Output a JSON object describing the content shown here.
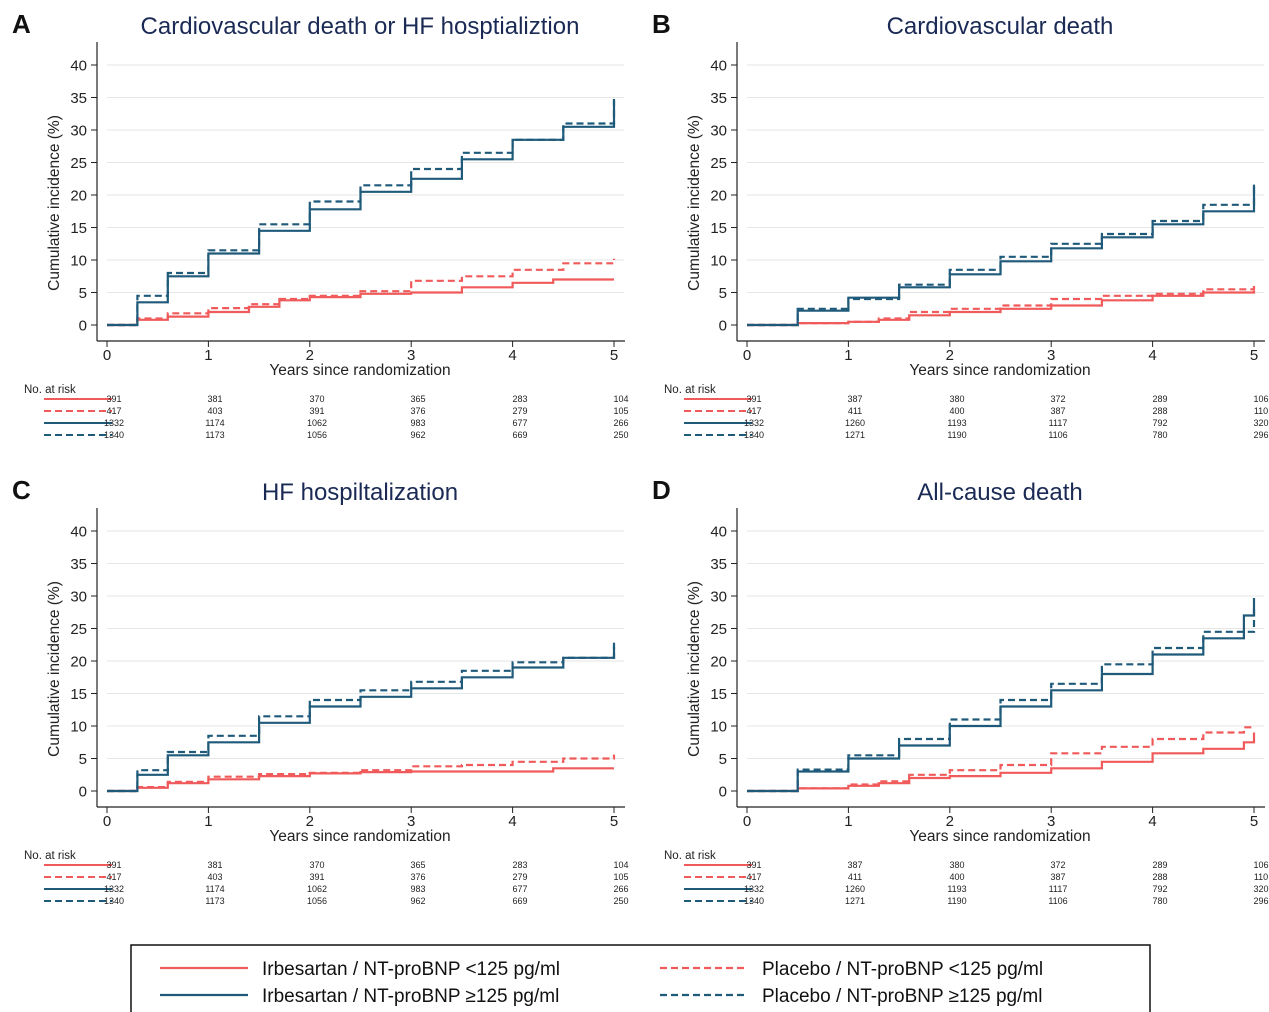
{
  "colors": {
    "irbesartan_low": "#f05a5a",
    "irbesartan_high": "#1f5a7a",
    "title": "#1a2a55",
    "axis": "#222222",
    "grid": "#e6e6e6"
  },
  "legend": {
    "items": [
      {
        "label": "Irbesartan / NT-proBNP <125 pg/ml",
        "series": 0
      },
      {
        "label": "Placebo / NT-proBNP <125 pg/ml",
        "series": 1
      },
      {
        "label": "Irbesartan / NT-proBNP ≥125 pg/ml",
        "series": 2
      },
      {
        "label": "Placebo / NT-proBNP ≥125 pg/ml",
        "series": 3
      }
    ]
  },
  "chart_data": [
    {
      "type": "line",
      "panel_letter": "A",
      "title": "Cardiovascular death or HF hosptializtion",
      "xlabel": "Years since randomization",
      "ylabel": "Cumulative incidence (%)",
      "xlim": [
        0,
        5
      ],
      "ylim": [
        0,
        40
      ],
      "xticks": [
        0,
        1,
        2,
        3,
        4,
        5
      ],
      "yticks": [
        0,
        5,
        10,
        15,
        20,
        25,
        30,
        35,
        40
      ],
      "grid": true,
      "series": [
        {
          "style": "solid",
          "color": "#f05a5a",
          "x": [
            0,
            0.3,
            0.6,
            1.0,
            1.4,
            1.7,
            2.0,
            2.5,
            3.0,
            3.5,
            4.0,
            4.4,
            5.0
          ],
          "y": [
            0,
            0.8,
            1.3,
            2.0,
            2.8,
            3.8,
            4.3,
            4.8,
            5.0,
            5.8,
            6.5,
            7.0,
            7.0
          ]
        },
        {
          "style": "dashed",
          "color": "#f05a5a",
          "x": [
            0,
            0.3,
            0.6,
            1.0,
            1.4,
            1.7,
            2.0,
            2.5,
            3.0,
            3.5,
            4.0,
            4.5,
            5.0
          ],
          "y": [
            0,
            1.0,
            1.8,
            2.6,
            3.2,
            4.0,
            4.5,
            5.2,
            6.8,
            7.5,
            8.5,
            9.5,
            10.2
          ]
        },
        {
          "style": "solid",
          "color": "#1f5a7a",
          "x": [
            0,
            0.3,
            0.6,
            1.0,
            1.5,
            2.0,
            2.5,
            3.0,
            3.5,
            4.0,
            4.5,
            5.0
          ],
          "y": [
            0,
            3.5,
            7.5,
            11.0,
            14.5,
            17.8,
            20.5,
            22.5,
            25.5,
            28.5,
            30.5,
            34.5
          ]
        },
        {
          "style": "dashed",
          "color": "#1f5a7a",
          "x": [
            0,
            0.3,
            0.6,
            1.0,
            1.5,
            2.0,
            2.5,
            3.0,
            3.5,
            4.0,
            4.5,
            5.0
          ],
          "y": [
            0,
            4.5,
            8.0,
            11.5,
            15.5,
            19.0,
            21.5,
            24.0,
            26.5,
            28.5,
            31.0,
            34.8
          ]
        }
      ],
      "at_risk": {
        "label": "No. at risk",
        "values": [
          [
            "391",
            "381",
            "370",
            "365",
            "283",
            "104"
          ],
          [
            "417",
            "403",
            "391",
            "376",
            "279",
            "105"
          ],
          [
            "1332",
            "1174",
            "1062",
            "983",
            "677",
            "266"
          ],
          [
            "1340",
            "1173",
            "1056",
            "962",
            "669",
            "250"
          ]
        ]
      }
    },
    {
      "type": "line",
      "panel_letter": "B",
      "title": "Cardiovascular death",
      "xlabel": "Years since randomization",
      "ylabel": "Cumulative incidence (%)",
      "xlim": [
        0,
        5
      ],
      "ylim": [
        0,
        40
      ],
      "xticks": [
        0,
        1,
        2,
        3,
        4,
        5
      ],
      "yticks": [
        0,
        5,
        10,
        15,
        20,
        25,
        30,
        35,
        40
      ],
      "grid": true,
      "series": [
        {
          "style": "solid",
          "color": "#f05a5a",
          "x": [
            0,
            0.5,
            1.0,
            1.3,
            1.6,
            2.0,
            2.5,
            3.0,
            3.5,
            4.0,
            4.5,
            5.0
          ],
          "y": [
            0,
            0.3,
            0.5,
            0.8,
            1.5,
            2.0,
            2.5,
            3.0,
            3.8,
            4.5,
            5.0,
            5.3
          ]
        },
        {
          "style": "dashed",
          "color": "#f05a5a",
          "x": [
            0,
            0.5,
            1.0,
            1.3,
            1.6,
            2.0,
            2.5,
            3.0,
            3.5,
            4.0,
            4.5,
            5.0
          ],
          "y": [
            0,
            0.3,
            0.5,
            1.0,
            2.0,
            2.5,
            3.0,
            4.0,
            4.5,
            4.8,
            5.5,
            6.3
          ]
        },
        {
          "style": "solid",
          "color": "#1f5a7a",
          "x": [
            0,
            0.5,
            1.0,
            1.5,
            2.0,
            2.5,
            3.0,
            3.5,
            4.0,
            4.5,
            5.0
          ],
          "y": [
            0,
            2.2,
            4.2,
            5.8,
            7.8,
            9.8,
            11.8,
            13.5,
            15.5,
            17.5,
            21.6
          ]
        },
        {
          "style": "dashed",
          "color": "#1f5a7a",
          "x": [
            0,
            0.5,
            1.0,
            1.5,
            2.0,
            2.5,
            3.0,
            3.5,
            4.0,
            4.5,
            5.0
          ],
          "y": [
            0,
            2.5,
            4.0,
            6.2,
            8.5,
            10.5,
            12.5,
            14.0,
            16.0,
            18.5,
            21.4
          ]
        }
      ],
      "at_risk": {
        "label": "No. at risk",
        "values": [
          [
            "391",
            "387",
            "380",
            "372",
            "289",
            "106"
          ],
          [
            "417",
            "411",
            "400",
            "387",
            "288",
            "110"
          ],
          [
            "1332",
            "1260",
            "1193",
            "1117",
            "792",
            "320"
          ],
          [
            "1340",
            "1271",
            "1190",
            "1106",
            "780",
            "296"
          ]
        ]
      }
    },
    {
      "type": "line",
      "panel_letter": "C",
      "title": "HF hospiltalization",
      "xlabel": "Years since randomization",
      "ylabel": "Cumulative incidence (%)",
      "xlim": [
        0,
        5
      ],
      "ylim": [
        0,
        40
      ],
      "xticks": [
        0,
        1,
        2,
        3,
        4,
        5
      ],
      "yticks": [
        0,
        5,
        10,
        15,
        20,
        25,
        30,
        35,
        40
      ],
      "grid": true,
      "series": [
        {
          "style": "solid",
          "color": "#f05a5a",
          "x": [
            0,
            0.3,
            0.6,
            1.0,
            1.5,
            2.0,
            2.5,
            3.0,
            3.5,
            4.0,
            4.4,
            5.0
          ],
          "y": [
            0,
            0.5,
            1.2,
            1.8,
            2.3,
            2.7,
            2.9,
            3.0,
            3.0,
            3.0,
            3.5,
            3.5
          ]
        },
        {
          "style": "dashed",
          "color": "#f05a5a",
          "x": [
            0,
            0.3,
            0.6,
            1.0,
            1.5,
            2.0,
            2.5,
            3.0,
            3.5,
            4.0,
            4.5,
            5.0
          ],
          "y": [
            0,
            0.6,
            1.4,
            2.2,
            2.6,
            2.8,
            3.2,
            3.8,
            4.0,
            4.5,
            5.0,
            5.6
          ]
        },
        {
          "style": "solid",
          "color": "#1f5a7a",
          "x": [
            0,
            0.3,
            0.6,
            1.0,
            1.5,
            2.0,
            2.5,
            3.0,
            3.5,
            4.0,
            4.5,
            5.0
          ],
          "y": [
            0,
            2.5,
            5.5,
            7.5,
            10.5,
            13.0,
            14.5,
            15.8,
            17.5,
            19.0,
            20.5,
            22.8
          ]
        },
        {
          "style": "dashed",
          "color": "#1f5a7a",
          "x": [
            0,
            0.3,
            0.6,
            1.0,
            1.5,
            2.0,
            2.5,
            3.0,
            3.5,
            4.0,
            4.5,
            5.0
          ],
          "y": [
            0,
            3.2,
            6.0,
            8.5,
            11.5,
            14.0,
            15.5,
            16.8,
            18.5,
            19.8,
            20.5,
            22.2
          ]
        }
      ],
      "at_risk": {
        "label": "No. at risk",
        "values": [
          [
            "391",
            "381",
            "370",
            "365",
            "283",
            "104"
          ],
          [
            "417",
            "403",
            "391",
            "376",
            "279",
            "105"
          ],
          [
            "1332",
            "1174",
            "1062",
            "983",
            "677",
            "266"
          ],
          [
            "1340",
            "1173",
            "1056",
            "962",
            "669",
            "250"
          ]
        ]
      }
    },
    {
      "type": "line",
      "panel_letter": "D",
      "title": "All-cause death",
      "xlabel": "Years since randomization",
      "ylabel": "Cumulative incidence (%)",
      "xlim": [
        0,
        5
      ],
      "ylim": [
        0,
        40
      ],
      "xticks": [
        0,
        1,
        2,
        3,
        4,
        5
      ],
      "yticks": [
        0,
        5,
        10,
        15,
        20,
        25,
        30,
        35,
        40
      ],
      "grid": true,
      "series": [
        {
          "style": "solid",
          "color": "#f05a5a",
          "x": [
            0,
            0.5,
            1.0,
            1.3,
            1.6,
            2.0,
            2.5,
            3.0,
            3.5,
            4.0,
            4.5,
            4.9,
            5.0
          ],
          "y": [
            0,
            0.4,
            0.8,
            1.2,
            2.0,
            2.3,
            2.8,
            3.5,
            4.5,
            5.8,
            6.5,
            7.5,
            9.0
          ]
        },
        {
          "style": "dashed",
          "color": "#f05a5a",
          "x": [
            0,
            0.5,
            1.0,
            1.3,
            1.6,
            2.0,
            2.5,
            3.0,
            3.5,
            4.0,
            4.5,
            4.9,
            5.0
          ],
          "y": [
            0,
            0.4,
            1.0,
            1.5,
            2.5,
            3.2,
            4.0,
            5.8,
            6.8,
            8.0,
            9.0,
            9.8,
            9.8
          ]
        },
        {
          "style": "solid",
          "color": "#1f5a7a",
          "x": [
            0,
            0.5,
            1.0,
            1.5,
            2.0,
            2.5,
            3.0,
            3.5,
            4.0,
            4.5,
            4.9,
            5.0
          ],
          "y": [
            0,
            3.0,
            5.0,
            7.0,
            10.0,
            13.0,
            15.5,
            18.0,
            21.0,
            23.5,
            27.0,
            29.7
          ]
        },
        {
          "style": "dashed",
          "color": "#1f5a7a",
          "x": [
            0,
            0.5,
            1.0,
            1.5,
            2.0,
            2.5,
            3.0,
            3.5,
            4.0,
            4.5,
            5.0
          ],
          "y": [
            0,
            3.3,
            5.5,
            8.0,
            11.0,
            14.0,
            16.5,
            19.5,
            22.0,
            24.5,
            28.2
          ]
        }
      ],
      "at_risk": {
        "label": "No. at risk",
        "values": [
          [
            "391",
            "387",
            "380",
            "372",
            "289",
            "106"
          ],
          [
            "417",
            "411",
            "400",
            "387",
            "288",
            "110"
          ],
          [
            "1332",
            "1260",
            "1193",
            "1117",
            "792",
            "320"
          ],
          [
            "1340",
            "1271",
            "1190",
            "1106",
            "780",
            "296"
          ]
        ]
      }
    }
  ]
}
